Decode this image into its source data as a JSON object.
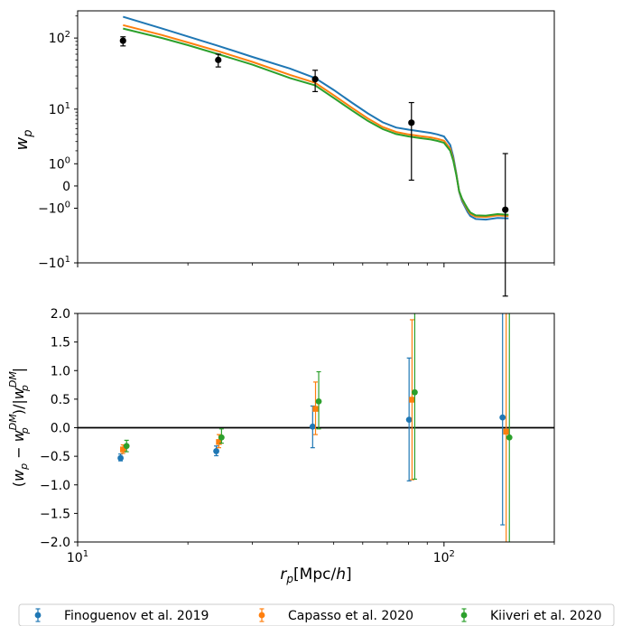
{
  "chart_data": [
    {
      "type": "line",
      "panel": "top",
      "ylabel": "w",
      "ylabel_sub": "p",
      "x_scale": "log",
      "y_scale": "symlog",
      "xlim": [
        10,
        200
      ],
      "y_ticks": [
        {
          "base": "10",
          "exp": "2",
          "value": 100
        },
        {
          "base": "10",
          "exp": "1",
          "value": 10
        },
        {
          "base": "10",
          "exp": "0",
          "value": 1
        },
        {
          "base": "0",
          "exp": "",
          "value": 0
        },
        {
          "base": "−10",
          "exp": "0",
          "value": -1
        },
        {
          "base": "−10",
          "exp": "1",
          "value": -10
        }
      ],
      "model_x": [
        13.3,
        17,
        20,
        24.2,
        30,
        38,
        44.5,
        50,
        56,
        62,
        68,
        74,
        80,
        86,
        92,
        96,
        100,
        104,
        106,
        108,
        110,
        112,
        114,
        116,
        118,
        122,
        130,
        140,
        150
      ],
      "series": [
        {
          "name": "Finoguenov et al. 2019",
          "color": "#1f77b4",
          "values": [
            195,
            135,
            105,
            78,
            55,
            38,
            28,
            19,
            12.5,
            8.6,
            6.3,
            5.2,
            4.8,
            4.5,
            4.25,
            4.0,
            3.7,
            2.6,
            1.5,
            0.5,
            -0.2,
            -0.6,
            -0.9,
            -1.25,
            -1.55,
            -1.8,
            -1.85,
            -1.7,
            -1.75
          ]
        },
        {
          "name": "Capasso et al. 2020",
          "color": "#ff7f0e",
          "values": [
            150,
            110,
            87,
            66,
            47,
            31,
            24,
            16,
            10.5,
            7.2,
            5.3,
            4.4,
            4.0,
            3.75,
            3.55,
            3.35,
            3.1,
            2.2,
            1.3,
            0.45,
            -0.18,
            -0.52,
            -0.8,
            -1.1,
            -1.38,
            -1.6,
            -1.63,
            -1.5,
            -1.55
          ]
        },
        {
          "name": "Kiiveri et al. 2020",
          "color": "#2ca02c",
          "values": [
            135,
            100,
            80,
            60,
            43,
            28,
            22,
            14.6,
            9.6,
            6.6,
            4.9,
            4.05,
            3.7,
            3.45,
            3.27,
            3.08,
            2.85,
            2.0,
            1.2,
            0.42,
            -0.17,
            -0.48,
            -0.74,
            -1.02,
            -1.28,
            -1.5,
            -1.52,
            -1.4,
            -1.45
          ]
        }
      ],
      "observed": {
        "x": [
          13.3,
          24.2,
          44.5,
          81.5,
          147
        ],
        "y": [
          92,
          50,
          27,
          6.2,
          -1.1
        ],
        "yerr_low": [
          78,
          40,
          18,
          0.2,
          -30
        ],
        "yerr_high": [
          104,
          60,
          36,
          12.5,
          1.75
        ],
        "color": "#000000"
      }
    },
    {
      "type": "scatter",
      "panel": "bottom",
      "ylabel": "(w_p − w_p^DM)/|w_p^DM|",
      "xlabel": "r_p[Mpc/h]",
      "x_scale": "log",
      "xlim": [
        10,
        200
      ],
      "ylim": [
        -2.0,
        2.0
      ],
      "x_ticks": [
        {
          "base": "10",
          "exp": "1",
          "value": 10
        },
        {
          "base": "10",
          "exp": "2",
          "value": 100
        }
      ],
      "y_ticks": [
        "−2.0",
        "−1.5",
        "−1.0",
        "−0.5",
        "0.0",
        "0.5",
        "1.0",
        "1.5",
        "2.0"
      ],
      "y_tick_values": [
        -2.0,
        -1.5,
        -1.0,
        -0.5,
        0.0,
        0.5,
        1.0,
        1.5,
        2.0
      ],
      "reference_line": 0.0,
      "series": [
        {
          "name": "Finoguenov et al. 2019",
          "color": "#1f77b4",
          "marker": "circle",
          "x": [
            13.1,
            23.9,
            43.8,
            80.3,
            144.5
          ],
          "y": [
            -0.53,
            -0.41,
            0.02,
            0.14,
            0.18
          ],
          "err_low": [
            -0.58,
            -0.49,
            -0.35,
            -0.93,
            -1.7
          ],
          "err_high": [
            -0.46,
            -0.32,
            0.38,
            1.22,
            2.0
          ]
        },
        {
          "name": "Capasso et al. 2020",
          "color": "#ff7f0e",
          "marker": "square",
          "x": [
            13.3,
            24.3,
            44.6,
            81.8,
            147.8
          ],
          "y": [
            -0.38,
            -0.25,
            0.33,
            0.49,
            -0.07
          ],
          "err_low": [
            -0.45,
            -0.35,
            -0.12,
            -0.91,
            -2.0
          ],
          "err_high": [
            -0.3,
            -0.12,
            0.8,
            1.89,
            2.0
          ]
        },
        {
          "name": "Kiiveri et al. 2020",
          "color": "#2ca02c",
          "marker": "circle",
          "x": [
            13.6,
            24.7,
            45.5,
            83.2,
            150.8
          ],
          "y": [
            -0.32,
            -0.17,
            0.46,
            0.62,
            -0.17
          ],
          "err_low": [
            -0.42,
            -0.27,
            -0.02,
            -0.9,
            -2.0
          ],
          "err_high": [
            -0.22,
            -0.02,
            0.98,
            2.0,
            2.0
          ]
        }
      ]
    }
  ],
  "legend": {
    "placement": "bottom",
    "entries": [
      {
        "label": "Finoguenov et al. 2019",
        "color": "#1f77b4"
      },
      {
        "label": "Capasso et al. 2020",
        "color": "#ff7f0e"
      },
      {
        "label": "Kiiveri et al. 2020",
        "color": "#2ca02c"
      }
    ]
  }
}
